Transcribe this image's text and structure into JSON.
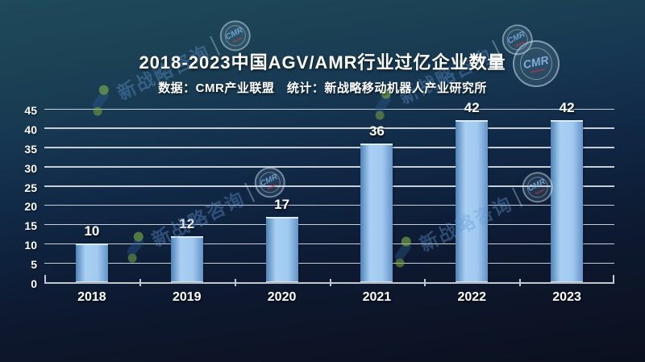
{
  "header": {
    "title": "2018-2023中国AGV/AMR行业过亿企业数量",
    "subtitle": "数据：CMR产业联盟　统计：新战略移动机器人产业研究所"
  },
  "watermark": {
    "brand_text": "新战略咨询",
    "badge_text": "CMR"
  },
  "chart_data": {
    "type": "bar",
    "categories": [
      "2018",
      "2019",
      "2020",
      "2021",
      "2022",
      "2023"
    ],
    "values": [
      10,
      12,
      17,
      36,
      42,
      42
    ],
    "title": "2018-2023中国AGV/AMR行业过亿企业数量",
    "subtitle": "数据：CMR产业联盟　统计：新战略移动机器人产业研究所",
    "xlabel": "",
    "ylabel": "",
    "ylim": [
      0,
      45
    ],
    "ytick_step": 5,
    "grid": true,
    "legend": false,
    "bar_gradient": [
      "#4e83b8",
      "#a9cff2",
      "#6293c9"
    ],
    "background_top": "#1e4a5c",
    "background_bottom": "#0a101e",
    "gridline_color": "#d6dde6",
    "text_color": "#ffffff"
  }
}
